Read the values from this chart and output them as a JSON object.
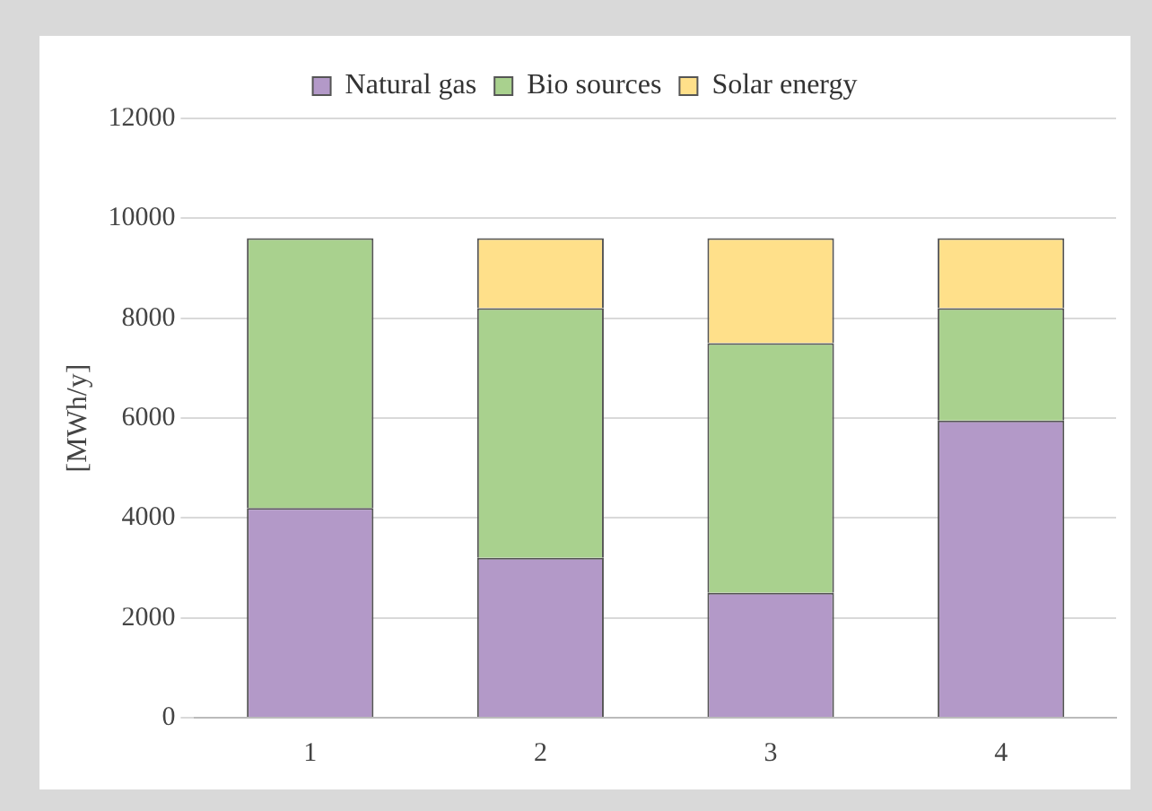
{
  "chart_data": {
    "type": "bar",
    "stacked": true,
    "ylabel": "[MWh/y]",
    "categories": [
      "1",
      "2",
      "3",
      "4"
    ],
    "series": [
      {
        "name": "Natural gas",
        "color": "#b399c8",
        "values": [
          4200,
          3200,
          2500,
          5950
        ]
      },
      {
        "name": "Bio sources",
        "color": "#a9d18e",
        "values": [
          5400,
          5000,
          5000,
          2250
        ]
      },
      {
        "name": "Solar energy",
        "color": "#ffe08a",
        "values": [
          0,
          1400,
          2100,
          1400
        ]
      }
    ],
    "ylim": [
      0,
      12000
    ],
    "yticks": [
      0,
      2000,
      4000,
      6000,
      8000,
      10000,
      12000
    ],
    "grid": "y",
    "legend": "top"
  }
}
